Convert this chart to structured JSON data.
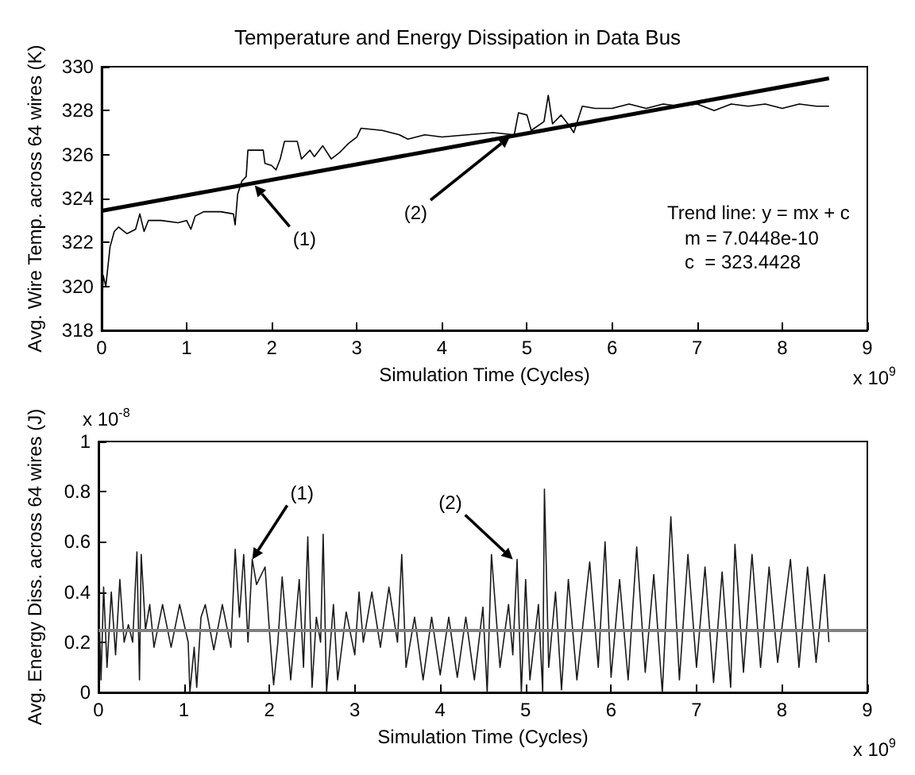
{
  "chart_data": [
    {
      "type": "line",
      "title": "Temperature and Energy Dissipation in Data Bus",
      "xlabel": "Simulation Time (Cycles)",
      "ylabel": "Avg. Wire Temp. across 64 wires (K)",
      "xlim": [
        0,
        9
      ],
      "xticks": [
        0,
        1,
        2,
        3,
        4,
        5,
        6,
        7,
        8,
        9
      ],
      "ylim": [
        318,
        330
      ],
      "yticks": [
        318,
        320,
        322,
        324,
        326,
        328,
        330
      ],
      "grid": false,
      "annotations": [
        "x 10$^{9}$",
        "Trend line: y = mx + c",
        "m = 7.0448e-10",
        "c  = 323.4428",
        {
          "text": "(1)",
          "x": 1.8,
          "y": 324.6
        },
        {
          "text": "(2)",
          "x": 4.8,
          "y": 326.82
        }
      ],
      "series": [
        {
          "color": "#000000",
          "x": [
            0,
            0.02,
            0.05,
            0.1,
            0.15,
            0.2,
            0.3,
            0.4,
            0.45,
            0.5,
            0.55,
            0.7,
            0.9,
            1.0,
            1.05,
            1.1,
            1.2,
            1.4,
            1.55,
            1.57,
            1.6,
            1.65,
            1.7,
            1.72,
            1.9,
            1.92,
            2.0,
            2.05,
            2.1,
            2.15,
            2.3,
            2.35,
            2.45,
            2.5,
            2.6,
            2.7,
            2.8,
            2.9,
            3.0,
            3.05,
            3.3,
            3.4,
            3.5,
            3.6,
            3.8,
            4.0,
            4.3,
            4.6,
            4.85,
            4.9,
            5.0,
            5.05,
            5.2,
            5.25,
            5.3,
            5.4,
            5.5,
            5.55,
            5.65,
            5.8,
            6.0,
            6.2,
            6.4,
            6.6,
            6.8,
            7.0,
            7.2,
            7.4,
            7.6,
            7.8,
            8.0,
            8.2,
            8.4,
            8.55
          ],
          "values": [
            318.5,
            320.5,
            320,
            321.8,
            322.5,
            322.7,
            322.4,
            322.6,
            323.3,
            322.5,
            323,
            323,
            322.9,
            323,
            322.6,
            323.2,
            323.4,
            323.4,
            323.3,
            322.8,
            324.2,
            324.8,
            325,
            326.2,
            326.2,
            325.6,
            325.5,
            325.3,
            325.8,
            326.6,
            326.6,
            325.8,
            326.2,
            325.9,
            326.4,
            325.8,
            326.1,
            326.5,
            326.8,
            327.2,
            327.1,
            327,
            326.9,
            326.7,
            326.9,
            326.8,
            326.9,
            327,
            326.9,
            327.9,
            327.8,
            327.1,
            327.5,
            328.7,
            327.4,
            327.8,
            327.3,
            327,
            328.2,
            328.1,
            328.1,
            328.3,
            328.1,
            328.3,
            328.2,
            328.3,
            328,
            328.3,
            328.2,
            328.3,
            328.1,
            328.3,
            328.2,
            328.2
          ]
        },
        {
          "color": "#000000",
          "x": [
            0,
            8.55
          ],
          "values": [
            323.44,
            329.47
          ]
        }
      ]
    },
    {
      "type": "line",
      "xlabel": "Simulation Time (Cycles)",
      "ylabel": "Avg. Energy Diss. across 64 wires (J)",
      "xlim": [
        0,
        9
      ],
      "xticks": [
        0,
        1,
        2,
        3,
        4,
        5,
        6,
        7,
        8,
        9
      ],
      "ylim": [
        0,
        1
      ],
      "yticks": [
        0,
        0.2,
        0.4,
        0.6,
        0.8,
        1
      ],
      "grid": false,
      "annotations": [
        "x 10$^{-8}$",
        "x 10$^{9}$",
        {
          "text": "(1)",
          "x": 1.8,
          "y": 0.53
        },
        {
          "text": "(2)",
          "x": 4.85,
          "y": 0.53
        }
      ],
      "ref_lines": [
        {
          "axis": "y",
          "value": 0.25,
          "color": "#808080"
        }
      ],
      "series": [
        {
          "color": "#1a1a1a",
          "x": [
            0,
            0.03,
            0.06,
            0.1,
            0.15,
            0.2,
            0.25,
            0.3,
            0.35,
            0.4,
            0.45,
            0.48,
            0.5,
            0.55,
            0.6,
            0.65,
            0.75,
            0.85,
            0.95,
            1.05,
            1.07,
            1.12,
            1.15,
            1.2,
            1.25,
            1.35,
            1.45,
            1.55,
            1.6,
            1.65,
            1.7,
            1.75,
            1.8,
            1.85,
            1.95,
            2.0,
            2.05,
            2.1,
            2.15,
            2.25,
            2.35,
            2.4,
            2.45,
            2.5,
            2.55,
            2.6,
            2.63,
            2.67,
            2.75,
            2.8,
            2.9,
            3.0,
            3.05,
            3.1,
            3.2,
            3.3,
            3.4,
            3.5,
            3.55,
            3.6,
            3.7,
            3.8,
            3.9,
            4.0,
            4.1,
            4.2,
            4.3,
            4.4,
            4.5,
            4.55,
            4.6,
            4.7,
            4.8,
            4.85,
            4.9,
            4.95,
            5.0,
            5.05,
            5.15,
            5.2,
            5.22,
            5.27,
            5.35,
            5.42,
            5.5,
            5.6,
            5.75,
            5.85,
            5.93,
            6.0,
            6.1,
            6.2,
            6.3,
            6.4,
            6.5,
            6.6,
            6.7,
            6.8,
            6.9,
            7.0,
            7.1,
            7.2,
            7.3,
            7.4,
            7.45,
            7.55,
            7.65,
            7.75,
            7.85,
            7.95,
            8.1,
            8.2,
            8.3,
            8.4,
            8.5,
            8.55
          ],
          "values": [
            0.4,
            0.05,
            0.42,
            0.1,
            0.4,
            0.15,
            0.45,
            0.2,
            0.27,
            0.2,
            0.56,
            0.05,
            0.55,
            0.25,
            0.35,
            0.18,
            0.35,
            0.18,
            0.35,
            0.2,
            0,
            0.18,
            0.02,
            0.3,
            0.35,
            0.17,
            0.35,
            0.18,
            0.57,
            0.3,
            0.55,
            0.2,
            0.53,
            0.43,
            0.5,
            0.25,
            0.03,
            0.2,
            0.46,
            0.05,
            0.45,
            0.1,
            0.62,
            0.02,
            0.3,
            0.2,
            0.63,
            0,
            0.35,
            0.05,
            0.32,
            0.15,
            0.4,
            0.2,
            0.4,
            0.18,
            0.42,
            0.2,
            0.55,
            0.1,
            0.3,
            0.05,
            0.3,
            0.07,
            0.3,
            0.06,
            0.3,
            0.05,
            0.34,
            0,
            0.55,
            0.1,
            0.35,
            0.15,
            0.53,
            0,
            0.45,
            0.05,
            0.35,
            0,
            0.81,
            0.1,
            0.4,
            0.01,
            0.45,
            0.05,
            0.52,
            0.1,
            0.6,
            0.06,
            0.45,
            0.05,
            0.58,
            0.08,
            0.47,
            0,
            0.7,
            0.05,
            0.55,
            0.1,
            0.5,
            0.04,
            0.48,
            0.02,
            0.59,
            0.08,
            0.55,
            0.1,
            0.5,
            0.12,
            0.53,
            0.1,
            0.5,
            0.12,
            0.47,
            0.2
          ]
        }
      ]
    }
  ]
}
